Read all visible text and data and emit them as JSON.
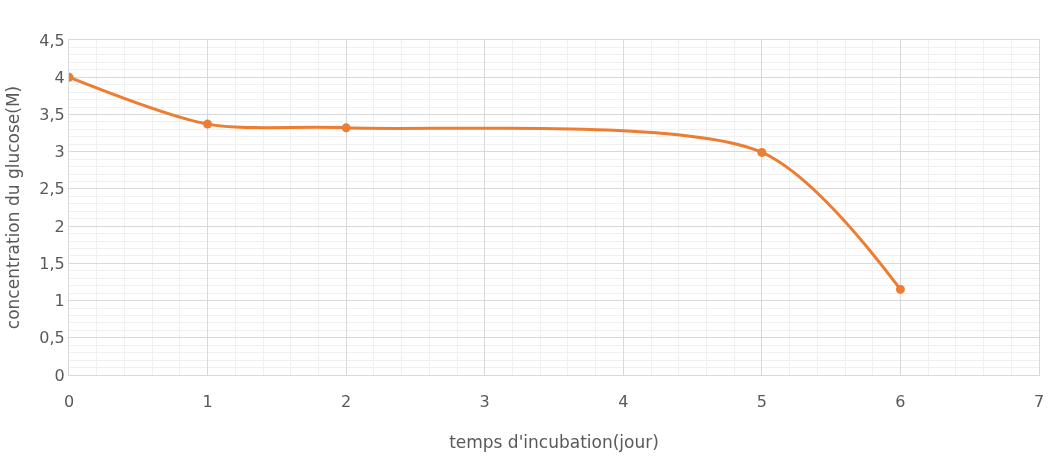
{
  "chart_data": {
    "type": "line",
    "xlabel": "temps d'incubation(jour)",
    "ylabel": "concentration du glucose(M)",
    "x": [
      0,
      1,
      2,
      5,
      6
    ],
    "series": [
      {
        "color": "#ed7d31",
        "values": [
          4.0,
          3.37,
          3.32,
          2.99,
          1.15
        ]
      }
    ],
    "xlim": [
      0,
      7
    ],
    "xticks": [
      0,
      1,
      2,
      3,
      4,
      5,
      6,
      7
    ],
    "ylim": [
      0,
      4.5
    ],
    "yticks": [
      {
        "value": 0,
        "label": "0"
      },
      {
        "value": 0.5,
        "label": "0,5"
      },
      {
        "value": 1,
        "label": "1"
      },
      {
        "value": 1.5,
        "label": "1,5"
      },
      {
        "value": 2,
        "label": "2"
      },
      {
        "value": 2.5,
        "label": "2,5"
      },
      {
        "value": 3,
        "label": "3"
      },
      {
        "value": 3.5,
        "label": "3,5"
      },
      {
        "value": 4,
        "label": "4"
      },
      {
        "value": 4.5,
        "label": "4,5"
      }
    ],
    "grid": true,
    "marker": "circle",
    "line_style": "solid"
  }
}
